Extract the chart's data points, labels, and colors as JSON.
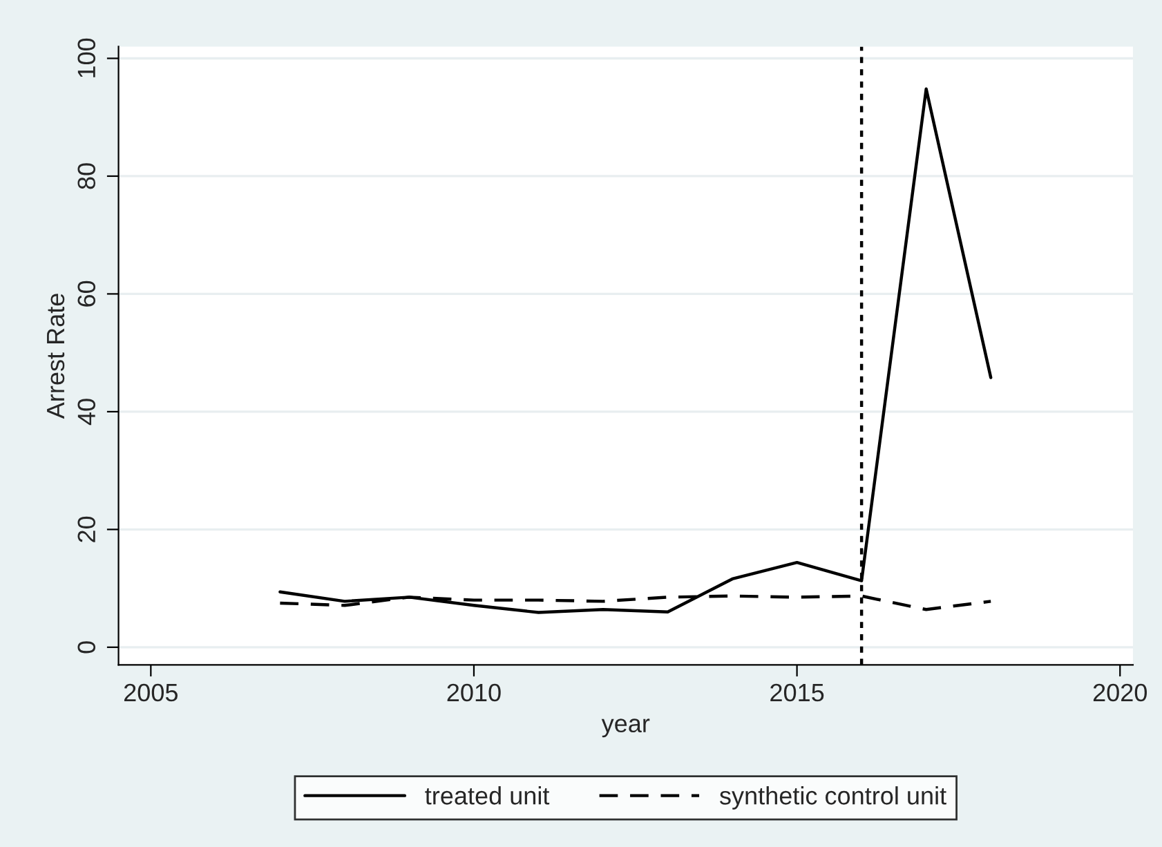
{
  "chart_data": {
    "type": "line",
    "xlabel": "year",
    "ylabel": "Arrest Rate",
    "x": [
      2007,
      2008,
      2009,
      2010,
      2011,
      2012,
      2013,
      2014,
      2015,
      2016,
      2017,
      2018
    ],
    "series": [
      {
        "name": "treated unit",
        "color": "#000000",
        "line_style": "solid",
        "values": [
          9.4,
          7.8,
          8.5,
          7.1,
          5.9,
          6.4,
          6.0,
          11.6,
          14.4,
          11.3,
          94.8,
          45.8
        ]
      },
      {
        "name": "synthetic control unit",
        "color": "#000000",
        "line_style": "dashed",
        "values": [
          7.5,
          7.1,
          8.5,
          8.0,
          8.0,
          7.8,
          8.5,
          8.7,
          8.5,
          8.7,
          6.4,
          7.8
        ]
      }
    ],
    "xlim": [
      2004.5,
      2020.2
    ],
    "xticks": [
      2005,
      2010,
      2015,
      2020
    ],
    "ylim": [
      -3,
      102
    ],
    "yticks": [
      0,
      20,
      40,
      60,
      80,
      100
    ],
    "ref_lines": [
      {
        "axis": "x",
        "value": 2016,
        "color": "#000000",
        "line_style": "dotted"
      }
    ],
    "grid": "y",
    "legend": "bottom",
    "marker": "none"
  }
}
